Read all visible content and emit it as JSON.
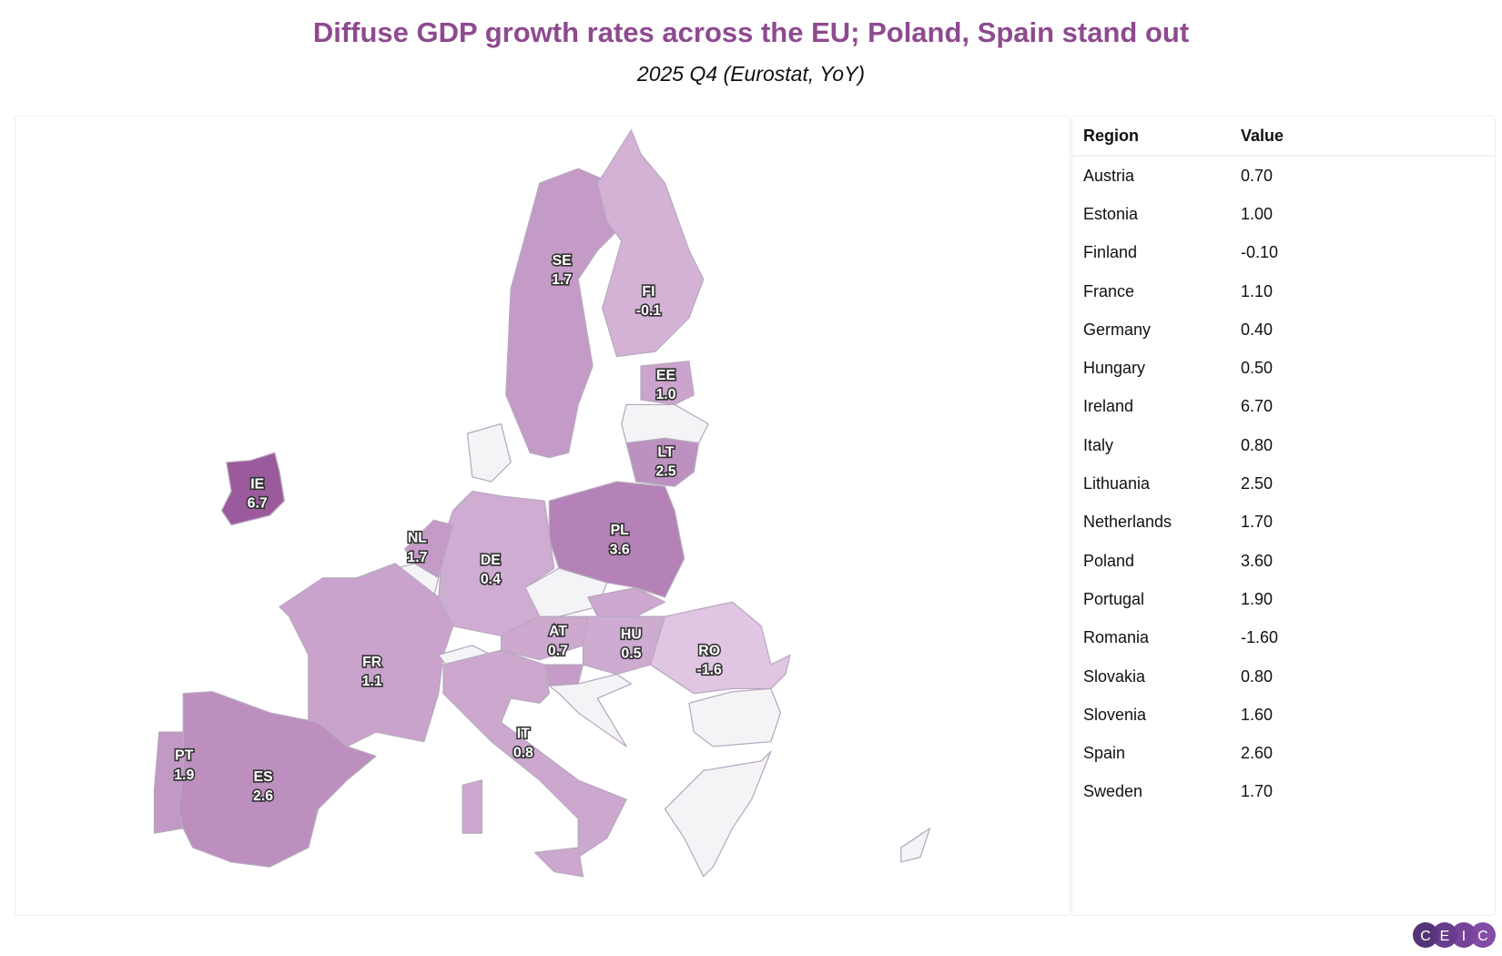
{
  "title": "Diffuse GDP growth rates across the EU; Poland, Spain stand out",
  "subtitle": "2025 Q4 (Eurostat, YoY)",
  "table": {
    "headers": [
      "Region",
      "Value"
    ],
    "rows": [
      [
        "Austria",
        "0.70"
      ],
      [
        "Estonia",
        "1.00"
      ],
      [
        "Finland",
        "-0.10"
      ],
      [
        "France",
        "1.10"
      ],
      [
        "Germany",
        "0.40"
      ],
      [
        "Hungary",
        "0.50"
      ],
      [
        "Ireland",
        "6.70"
      ],
      [
        "Italy",
        "0.80"
      ],
      [
        "Lithuania",
        "2.50"
      ],
      [
        "Netherlands",
        "1.70"
      ],
      [
        "Poland",
        "3.60"
      ],
      [
        "Portugal",
        "1.90"
      ],
      [
        "Romania",
        "-1.60"
      ],
      [
        "Slovakia",
        "0.80"
      ],
      [
        "Slovenia",
        "1.60"
      ],
      [
        "Spain",
        "2.60"
      ],
      [
        "Sweden",
        "1.70"
      ]
    ]
  },
  "chart_data": {
    "type": "choropleth",
    "title": "Diffuse GDP growth rates across the EU; Poland, Spain stand out",
    "subtitle": "2025 Q4 (Eurostat, YoY)",
    "color_scale": {
      "min": -1.6,
      "max": 6.7,
      "low_color": "#e0c6e3",
      "high_color": "#9a5a9b",
      "no_data_color": "#f4f4f6"
    },
    "regions": [
      {
        "code": "AT",
        "name": "Austria",
        "value": 0.7
      },
      {
        "code": "EE",
        "name": "Estonia",
        "value": 1.0
      },
      {
        "code": "FI",
        "name": "Finland",
        "value": -0.1
      },
      {
        "code": "FR",
        "name": "France",
        "value": 1.1
      },
      {
        "code": "DE",
        "name": "Germany",
        "value": 0.4
      },
      {
        "code": "HU",
        "name": "Hungary",
        "value": 0.5
      },
      {
        "code": "IE",
        "name": "Ireland",
        "value": 6.7
      },
      {
        "code": "IT",
        "name": "Italy",
        "value": 0.8
      },
      {
        "code": "LT",
        "name": "Lithuania",
        "value": 2.5
      },
      {
        "code": "NL",
        "name": "Netherlands",
        "value": 1.7
      },
      {
        "code": "PL",
        "name": "Poland",
        "value": 3.6
      },
      {
        "code": "PT",
        "name": "Portugal",
        "value": 1.9
      },
      {
        "code": "RO",
        "name": "Romania",
        "value": -1.6
      },
      {
        "code": "SK",
        "name": "Slovakia",
        "value": 0.8
      },
      {
        "code": "SI",
        "name": "Slovenia",
        "value": 1.6
      },
      {
        "code": "ES",
        "name": "Spain",
        "value": 2.6
      },
      {
        "code": "SE",
        "name": "Sweden",
        "value": 1.7
      }
    ],
    "labels": {
      "AT": "0.7",
      "EE": "1.0",
      "FI": "-0.1",
      "FR": "1.1",
      "DE": "0.4",
      "HU": "0.5",
      "IE": "6.7",
      "IT": "0.8",
      "LT": "2.5",
      "NL": "1.7",
      "PL": "3.6",
      "PT": "1.9",
      "RO": "-1.6",
      "ES": "2.6",
      "SE": "1.7"
    }
  },
  "logo": {
    "text": "CEIC",
    "letters": [
      "C",
      "E",
      "I",
      "C"
    ],
    "color": "#6b3a8c"
  }
}
